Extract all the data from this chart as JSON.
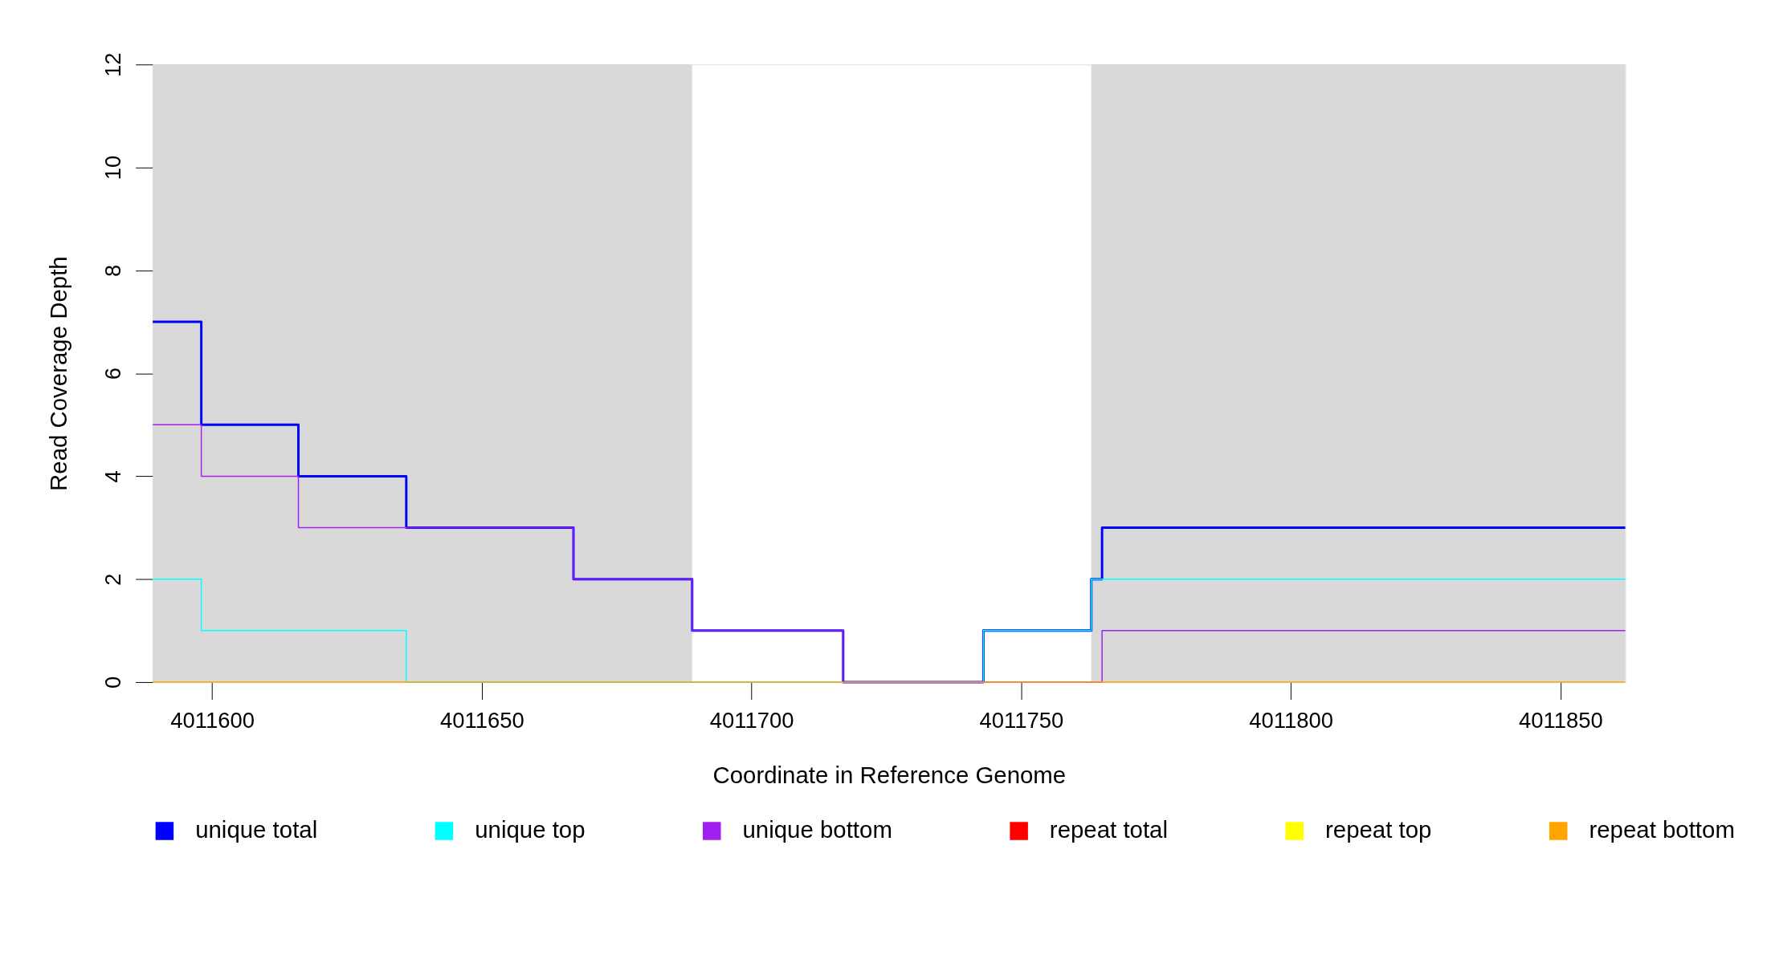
{
  "chart_data": {
    "type": "step",
    "xlabel": "Coordinate in Reference Genome",
    "ylabel": "Read Coverage Depth",
    "xlim": [
      4011589,
      4011862
    ],
    "xticks": [
      4011600,
      4011650,
      4011700,
      4011750,
      4011800,
      4011850
    ],
    "ylim": [
      0,
      12
    ],
    "yticks": [
      0,
      2,
      4,
      6,
      8,
      10,
      12
    ],
    "grid": false,
    "legend": "bottom",
    "bands": [
      {
        "axis": "x",
        "from": 4011589,
        "to": 4011689,
        "color": "#d9d9d9"
      },
      {
        "axis": "x",
        "from": 4011763,
        "to": 4011862,
        "color": "#d9d9d9"
      }
    ],
    "series": [
      {
        "name": "unique total",
        "color": "#0000ff",
        "x": [
          4011589,
          4011598,
          4011616,
          4011636,
          4011667,
          4011689,
          4011717,
          4011743,
          4011763,
          4011765,
          4011862
        ],
        "values": [
          7,
          5,
          4,
          3,
          2,
          1,
          0,
          1,
          2,
          3,
          3
        ]
      },
      {
        "name": "unique top",
        "color": "#00ffff",
        "x": [
          4011589,
          4011598,
          4011636,
          4011743,
          4011763,
          4011862
        ],
        "values": [
          2,
          1,
          0,
          1,
          2,
          2
        ]
      },
      {
        "name": "unique bottom",
        "color": "#a020f0",
        "x": [
          4011589,
          4011598,
          4011616,
          4011667,
          4011689,
          4011717,
          4011765,
          4011862
        ],
        "values": [
          5,
          4,
          3,
          2,
          1,
          0,
          1,
          1
        ]
      },
      {
        "name": "repeat total",
        "color": "#ff0000"
      },
      {
        "name": "repeat top",
        "color": "#ffff00"
      },
      {
        "name": "repeat bottom",
        "color": "#ffa500",
        "x": [
          4011589,
          4011862
        ],
        "values": [
          0,
          0
        ]
      }
    ]
  }
}
